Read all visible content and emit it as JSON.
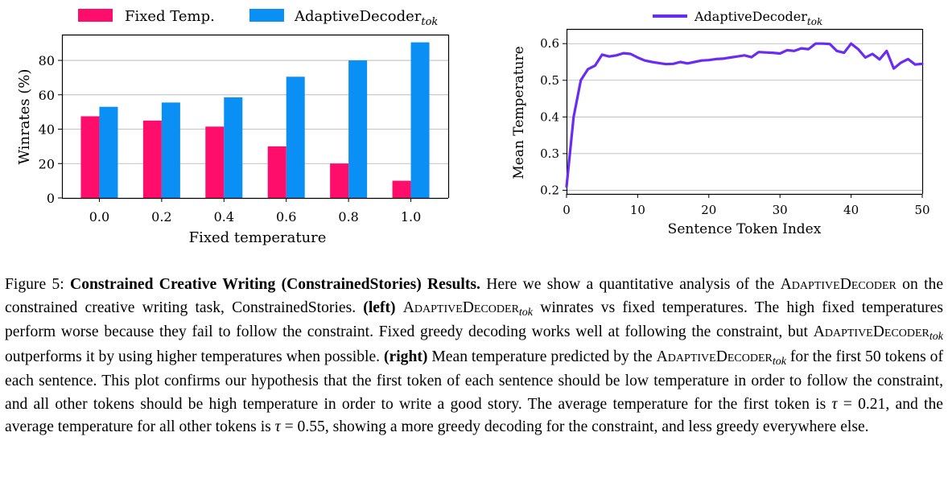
{
  "chart_data": [
    {
      "type": "bar",
      "categories": [
        "0.0",
        "0.2",
        "0.4",
        "0.6",
        "0.8",
        "1.0"
      ],
      "series": [
        {
          "name": "Fixed Temp.",
          "color": "#ff0d6b",
          "values": [
            47.5,
            45,
            41.5,
            30,
            20,
            10
          ]
        },
        {
          "name": "AdaptiveDecoder_tok",
          "color": "#0a8ff5",
          "values": [
            53,
            55.5,
            58.5,
            70.5,
            80,
            90.5
          ]
        }
      ],
      "xlabel": "Fixed temperature",
      "ylabel": "Winrates (%)",
      "ylim": [
        0,
        95
      ],
      "yticks": [
        0,
        20,
        40,
        60,
        80
      ],
      "grid": "horizontal",
      "legend": "top"
    },
    {
      "type": "line",
      "x": [
        0,
        1,
        2,
        3,
        4,
        5,
        6,
        7,
        8,
        9,
        10,
        11,
        12,
        13,
        14,
        15,
        16,
        17,
        18,
        19,
        20,
        21,
        22,
        23,
        24,
        25,
        26,
        27,
        28,
        29,
        30,
        31,
        32,
        33,
        34,
        35,
        36,
        37,
        38,
        39,
        40,
        41,
        42,
        43,
        44,
        45,
        46,
        47,
        48,
        49,
        50
      ],
      "series": [
        {
          "name": "AdaptiveDecoder_tok",
          "color": "#6a2cf2",
          "values": [
            0.21,
            0.4,
            0.5,
            0.53,
            0.54,
            0.57,
            0.565,
            0.568,
            0.574,
            0.572,
            0.562,
            0.554,
            0.55,
            0.547,
            0.544,
            0.545,
            0.55,
            0.546,
            0.55,
            0.554,
            0.555,
            0.558,
            0.559,
            0.562,
            0.565,
            0.568,
            0.563,
            0.577,
            0.576,
            0.575,
            0.573,
            0.582,
            0.58,
            0.587,
            0.585,
            0.6,
            0.6,
            0.599,
            0.58,
            0.575,
            0.6,
            0.585,
            0.562,
            0.572,
            0.557,
            0.58,
            0.532,
            0.548,
            0.558,
            0.543,
            0.545
          ]
        }
      ],
      "xlabel": "Sentence Token Index",
      "ylabel": "Mean Temperature",
      "xlim": [
        0,
        50
      ],
      "ylim": [
        0.19,
        0.64
      ],
      "xticks": [
        0,
        10,
        20,
        30,
        40,
        50
      ],
      "yticks": [
        0.2,
        0.3,
        0.4,
        0.5,
        0.6
      ],
      "grid": "horizontal",
      "legend": "top"
    }
  ],
  "legends": {
    "left_fixed": "Fixed Temp.",
    "left_adaptive": "AdaptiveDecoder",
    "right_adaptive": "AdaptiveDecoder",
    "subscript": "tok"
  },
  "caption": {
    "label": "Figure 5:",
    "title": "Constrained Creative Writing (ConstrainedStories) Results.",
    "t1": " Here we show a quantitative analysis of the ",
    "ad1": "AdaptiveDecoder",
    "t2": " on the constrained creative writing task, ConstrainedStories. ",
    "left": "(left)",
    "ad2": "AdaptiveDecoder",
    "sub": "tok",
    "t3": " winrates vs fixed temperatures. The high fixed temperatures perform worse because they fail to follow the constraint. Fixed greedy decoding works well at following the constraint, but ",
    "ad3": "AdaptiveDecoder",
    "t4": " outperforms it by using higher temperatures when possible. ",
    "right": "(right)",
    "t5": " Mean temperature predicted by the ",
    "ad4": "AdaptiveDecoder",
    "t6": " for the first 50 tokens of each sentence. This plot confirms our hypothesis that the first token of each sentence should be low temperature in order to follow the constraint, and all other tokens should be high temperature in order to write a good story. The average temperature for the first token is ",
    "tau": "τ",
    "v1": " = 0.21, and the average temperature for all other tokens is ",
    "v2": " = 0.55, showing a more greedy decoding for the constraint, and less greedy everywhere else."
  }
}
